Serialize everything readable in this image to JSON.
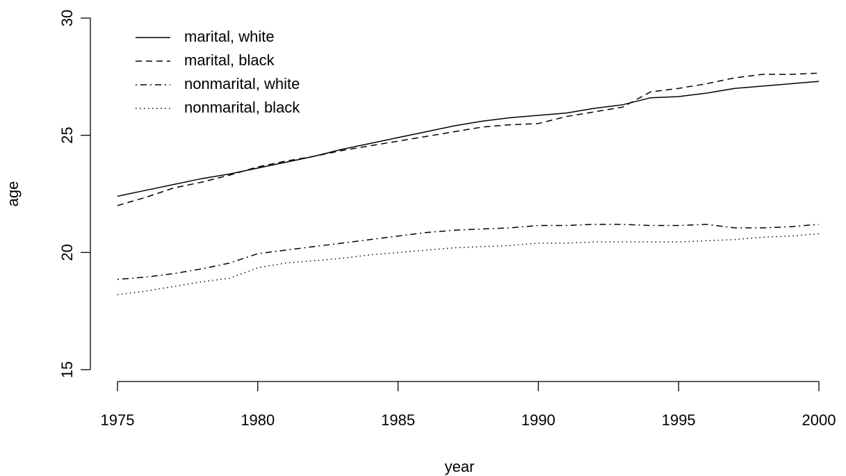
{
  "chart_data": {
    "type": "line",
    "x_label": "year",
    "y_label": "age",
    "x": [
      1975,
      1976,
      1977,
      1978,
      1979,
      1980,
      1981,
      1982,
      1983,
      1984,
      1985,
      1986,
      1987,
      1988,
      1989,
      1990,
      1991,
      1992,
      1993,
      1994,
      1995,
      1996,
      1997,
      1998,
      1999,
      2000
    ],
    "series": [
      {
        "name": "marital, white",
        "color": "#000000",
        "linestyle": "solid",
        "values": [
          22.4,
          22.65,
          22.9,
          23.15,
          23.35,
          23.6,
          23.85,
          24.1,
          24.4,
          24.65,
          24.9,
          25.15,
          25.4,
          25.6,
          25.75,
          25.85,
          25.95,
          26.15,
          26.3,
          26.6,
          26.65,
          26.8,
          27.0,
          27.1,
          27.2,
          27.3
        ]
      },
      {
        "name": "marital, black",
        "color": "#000000",
        "linestyle": "dashed",
        "values": [
          22.0,
          22.35,
          22.75,
          23.0,
          23.3,
          23.65,
          23.9,
          24.1,
          24.35,
          24.55,
          24.75,
          24.95,
          25.15,
          25.35,
          25.45,
          25.5,
          25.8,
          26.0,
          26.2,
          26.85,
          27.0,
          27.2,
          27.45,
          27.6,
          27.6,
          27.65
        ]
      },
      {
        "name": "nonmarital, white",
        "color": "#000000",
        "linestyle": "dashdot",
        "values": [
          18.85,
          18.95,
          19.1,
          19.3,
          19.55,
          19.95,
          20.1,
          20.25,
          20.4,
          20.55,
          20.7,
          20.85,
          20.95,
          21.0,
          21.05,
          21.15,
          21.15,
          21.2,
          21.2,
          21.15,
          21.15,
          21.2,
          21.05,
          21.05,
          21.1,
          21.2
        ]
      },
      {
        "name": "nonmarital, black",
        "color": "#000000",
        "linestyle": "dotted",
        "values": [
          18.2,
          18.35,
          18.55,
          18.75,
          18.9,
          19.35,
          19.55,
          19.65,
          19.75,
          19.9,
          20.0,
          20.1,
          20.2,
          20.25,
          20.3,
          20.4,
          20.4,
          20.45,
          20.45,
          20.45,
          20.45,
          20.5,
          20.55,
          20.65,
          20.7,
          20.8
        ]
      }
    ],
    "xlim": [
      1975,
      2000
    ],
    "xticks": [
      1975,
      1980,
      1985,
      1990,
      1995,
      2000
    ],
    "ylim": [
      15,
      30
    ],
    "yticks": [
      15,
      20,
      25,
      30
    ],
    "legend": "top-left"
  }
}
